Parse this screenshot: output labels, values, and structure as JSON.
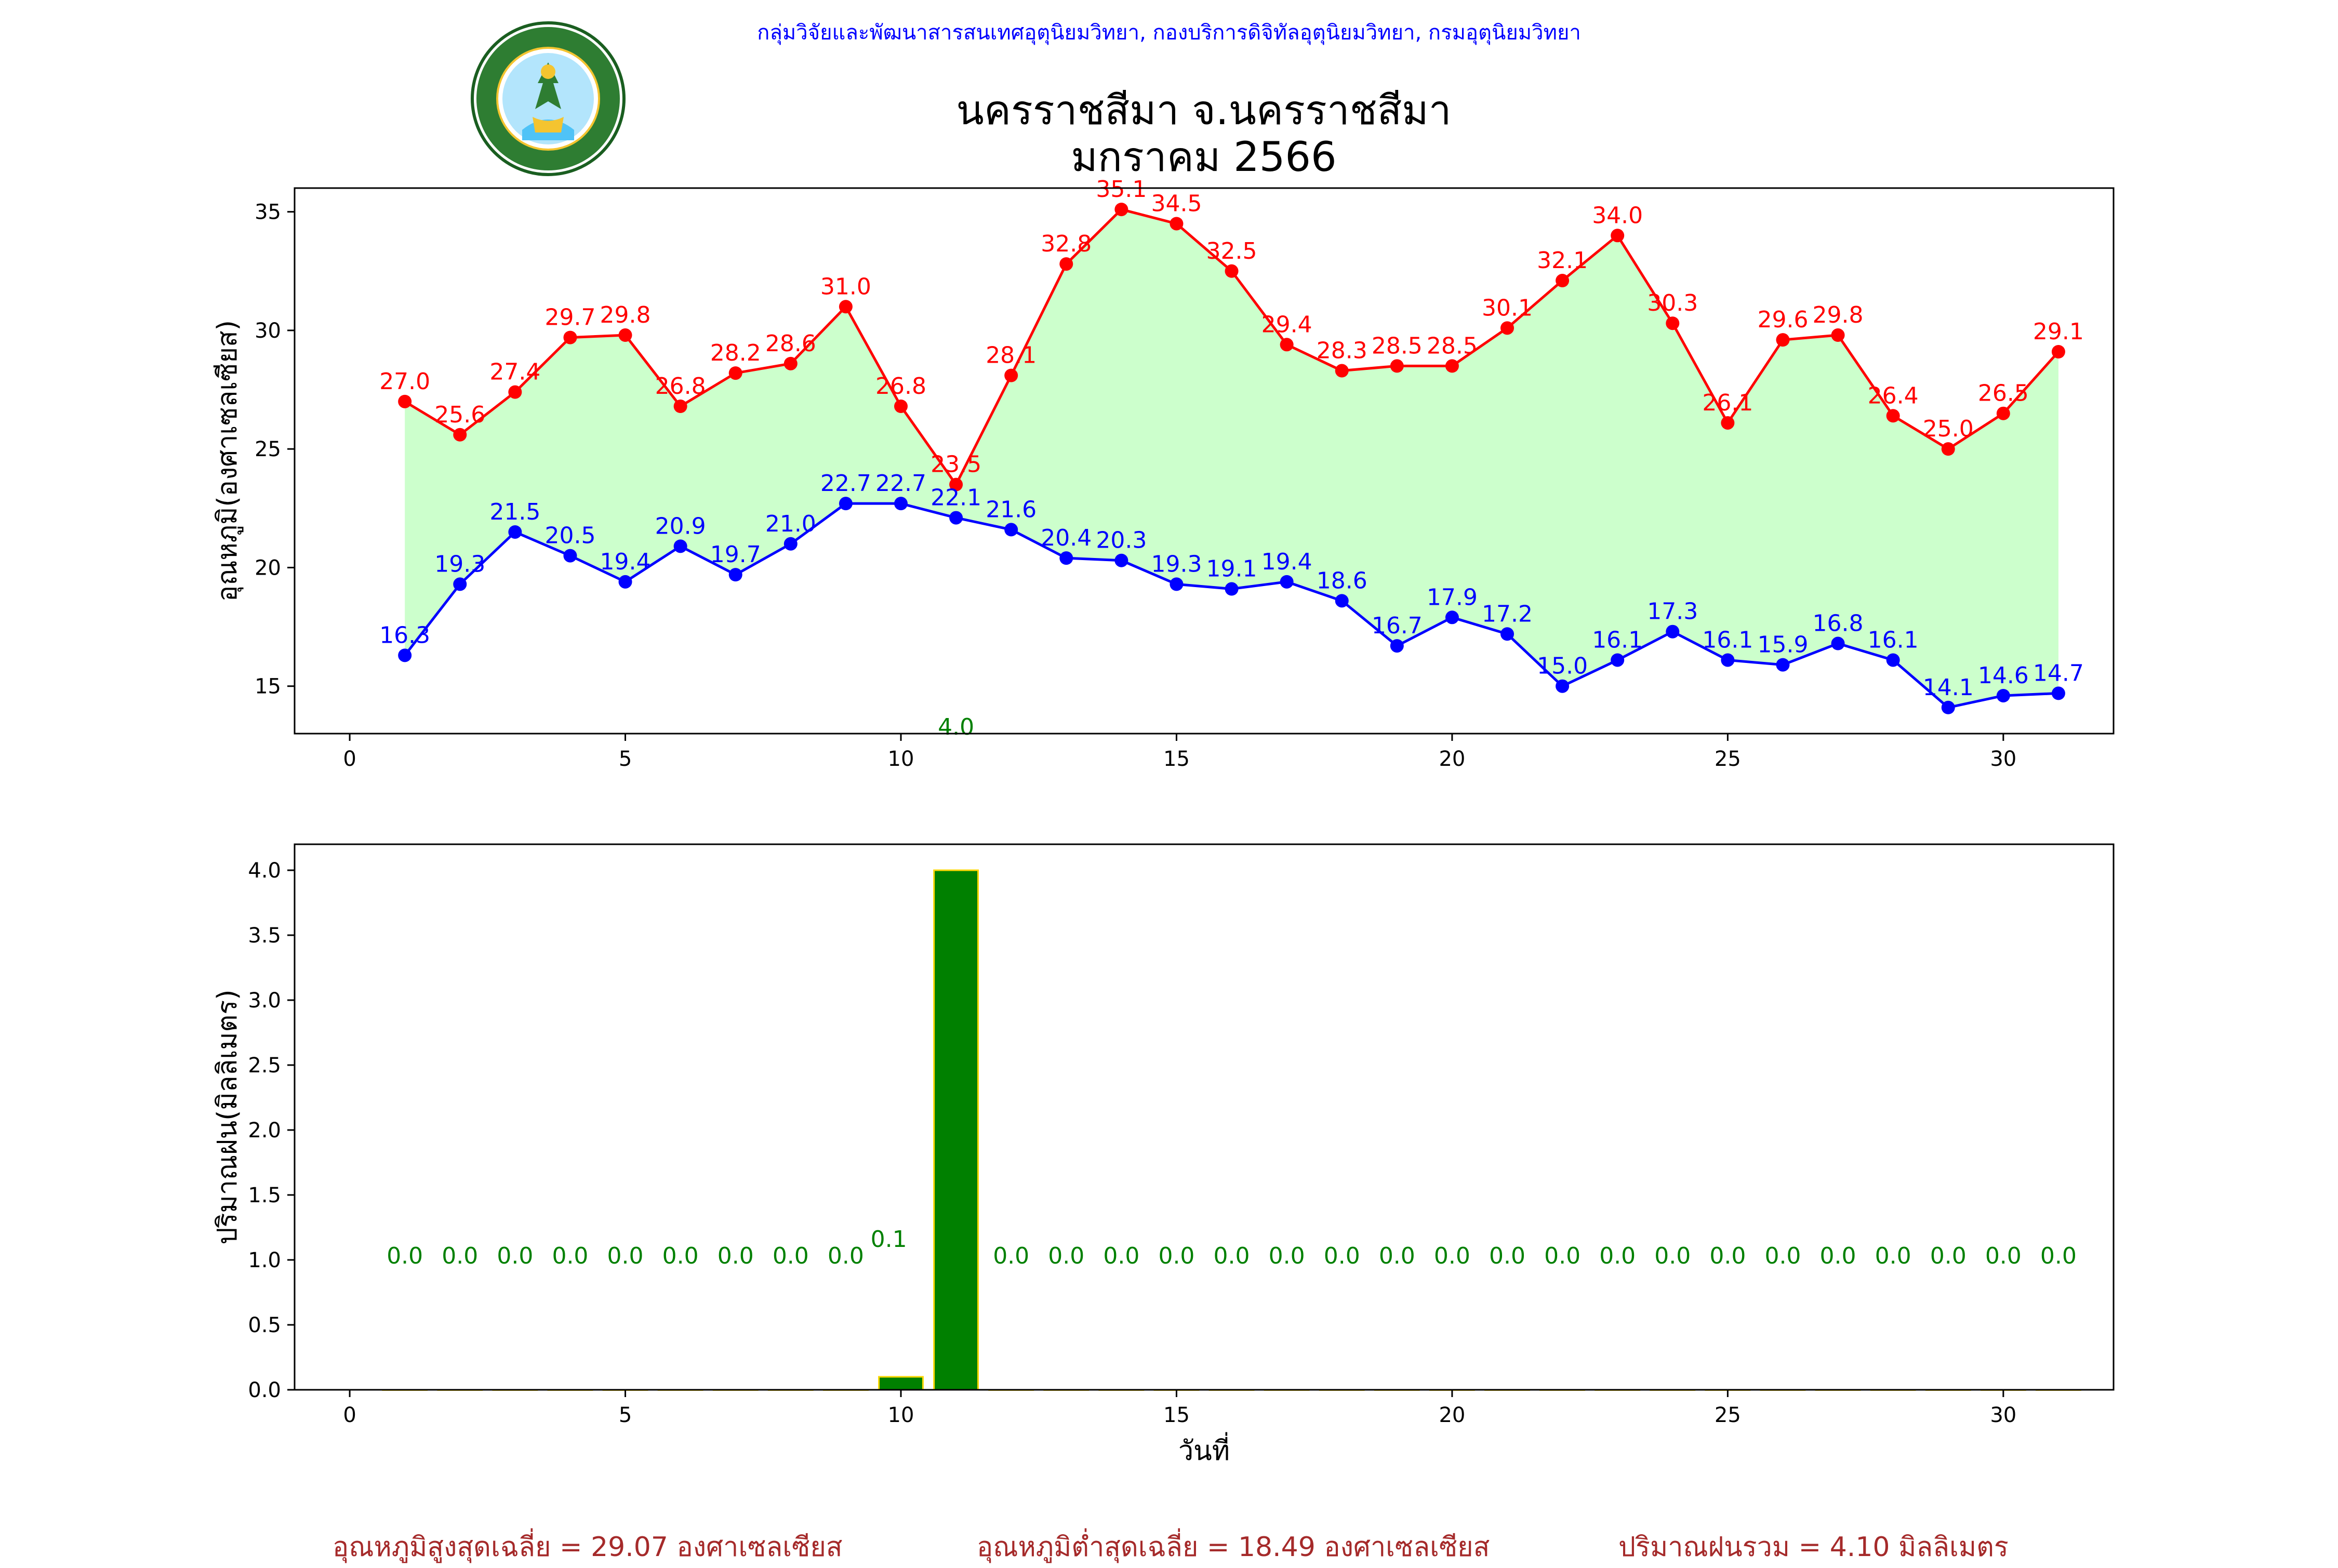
{
  "header": {
    "org_line": "กลุ่มวิจัยและพัฒนาสารสนเทศอุตุนิยมวิทยา, กองบริการดิจิทัลอุตุนิยมวิทยา, กรมอุตุนิยมวิทยา",
    "logo_text": "กรมอุตุนิยมวิทยา METEOROLOGICAL DEPARTMENT",
    "title_line1": "นครราชสีมา จ.นครราชสีมา",
    "title_line2": "มกราคม 2566"
  },
  "colors": {
    "max_temp": "#ff0000",
    "min_temp": "#0000ff",
    "range_fill": "#ccffcc",
    "rain_bar": "#008000",
    "rain_bar_edge": "#ffd700",
    "rain_label": "#008000",
    "summary_text": "#a52a2a"
  },
  "chart_data": [
    {
      "type": "line",
      "ylabel": "อุณหภูมิ(องศาเซลเซียส)",
      "xlabel": "",
      "xlim": [
        -1,
        32
      ],
      "ylim": [
        13,
        36
      ],
      "xticks": [
        0,
        5,
        10,
        15,
        20,
        25,
        30
      ],
      "yticks": [
        15,
        20,
        25,
        30,
        35
      ],
      "x": [
        1,
        2,
        3,
        4,
        5,
        6,
        7,
        8,
        9,
        10,
        11,
        12,
        13,
        14,
        15,
        16,
        17,
        18,
        19,
        20,
        21,
        22,
        23,
        24,
        25,
        26,
        27,
        28,
        29,
        30,
        31
      ],
      "series": [
        {
          "key": "max",
          "values": [
            27.0,
            25.6,
            27.4,
            29.7,
            29.8,
            26.8,
            28.2,
            28.6,
            31.0,
            26.8,
            23.5,
            28.1,
            32.8,
            35.1,
            34.5,
            32.5,
            29.4,
            28.3,
            28.5,
            28.5,
            30.1,
            32.1,
            34.0,
            30.3,
            26.1,
            29.6,
            29.8,
            26.4,
            25.0,
            26.5,
            29.1
          ]
        },
        {
          "key": "min",
          "values": [
            16.3,
            19.3,
            21.5,
            20.5,
            19.4,
            20.9,
            19.7,
            21.0,
            22.7,
            22.7,
            22.1,
            21.6,
            20.4,
            20.3,
            19.3,
            19.1,
            19.4,
            18.6,
            16.7,
            17.9,
            17.2,
            15.0,
            16.1,
            17.3,
            16.1,
            15.9,
            16.8,
            16.1,
            14.1,
            14.6,
            14.7
          ]
        }
      ],
      "annotation": {
        "x": 11,
        "text": "4.0"
      }
    },
    {
      "type": "bar",
      "ylabel": "ปริมาณฝน(มิลลิเมตร)",
      "xlabel": "วันที่",
      "xlim": [
        -1,
        32
      ],
      "ylim": [
        0,
        4.2
      ],
      "xticks": [
        0,
        5,
        10,
        15,
        20,
        25,
        30
      ],
      "yticks": [
        0.0,
        0.5,
        1.0,
        1.5,
        2.0,
        2.5,
        3.0,
        3.5,
        4.0
      ],
      "x": [
        1,
        2,
        3,
        4,
        5,
        6,
        7,
        8,
        9,
        10,
        11,
        12,
        13,
        14,
        15,
        16,
        17,
        18,
        19,
        20,
        21,
        22,
        23,
        24,
        25,
        26,
        27,
        28,
        29,
        30,
        31
      ],
      "values": [
        0.0,
        0.0,
        0.0,
        0.0,
        0.0,
        0.0,
        0.0,
        0.0,
        0.0,
        0.1,
        4.0,
        0.0,
        0.0,
        0.0,
        0.0,
        0.0,
        0.0,
        0.0,
        0.0,
        0.0,
        0.0,
        0.0,
        0.0,
        0.0,
        0.0,
        0.0,
        0.0,
        0.0,
        0.0,
        0.0,
        0.0
      ]
    }
  ],
  "summary": {
    "avg_max": "อุณหภูมิสูงสุดเฉลี่ย = 29.07 องศาเซลเซียส",
    "avg_min": "อุณหภูมิต่ำสุดเฉลี่ย = 18.49 องศาเซลเซียส",
    "total_rain": "ปริมาณฝนรวม = 4.10 มิลลิเมตร"
  }
}
